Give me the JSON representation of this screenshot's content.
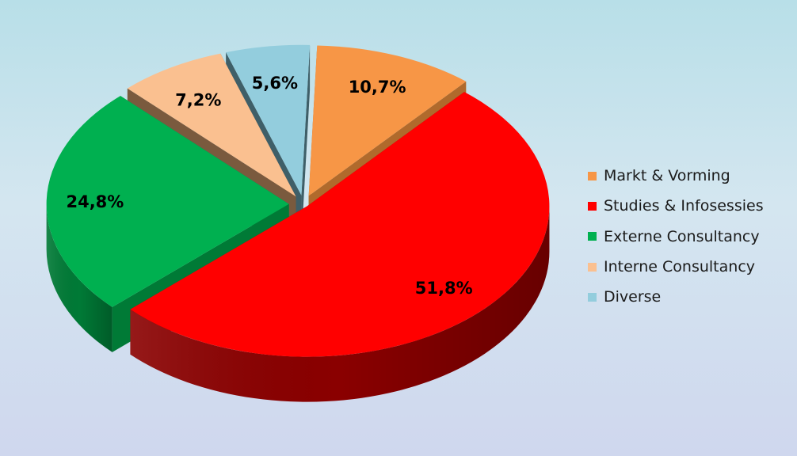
{
  "chart_data": {
    "type": "pie",
    "title": "",
    "three_d": true,
    "exploded": true,
    "legend_position": "right",
    "data_label_format": "percent",
    "slices": [
      {
        "label": "Markt & Vorming",
        "value": 10.7,
        "value_text": "10,7%",
        "color": "#f79646",
        "side_color": "#b06a2c"
      },
      {
        "label": "Studies & Infosessies",
        "value": 51.8,
        "value_text": "51,8%",
        "color": "#ff0000",
        "side_color": "#8a0000"
      },
      {
        "label": "Externe Consultancy",
        "value": 24.8,
        "value_text": "24,8%",
        "color": "#00b050",
        "side_color": "#007a36"
      },
      {
        "label": "Interne Consultancy",
        "value": 7.2,
        "value_text": "7,2%",
        "color": "#fac090",
        "side_color": "#7a5a3e"
      },
      {
        "label": "Diverse",
        "value": 5.6,
        "value_text": "5,6%",
        "color": "#93cddd",
        "side_color": "#3f5f68"
      }
    ]
  }
}
